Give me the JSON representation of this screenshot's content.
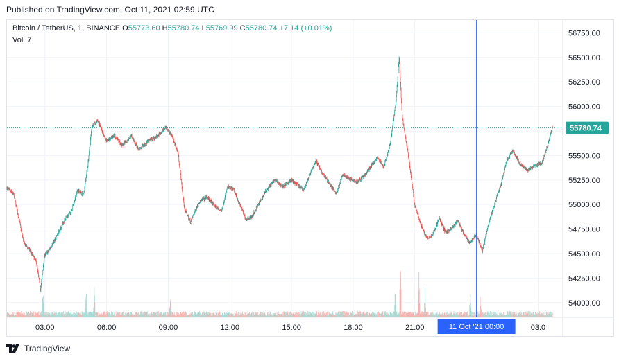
{
  "published": "Published on TradingView.com, Oct 11, 2021 02:59 UTC",
  "legend": {
    "symbol": "Bitcoin / TetherUS, 1, BINANCE",
    "o_label": "O",
    "o": "55773.60",
    "h_label": "H",
    "h": "55780.74",
    "l_label": "L",
    "l": "55769.99",
    "c_label": "C",
    "c": "55780.74",
    "change": "+7.14 (+0.01%)",
    "vol_label": "Vol",
    "vol": "7"
  },
  "brand": "TradingView",
  "colors": {
    "up": "#26a69a",
    "down": "#ef5350",
    "crosshair": "#2962ff",
    "last_price_bg": "#26a69a"
  },
  "chart_data": {
    "type": "candlestick",
    "y_ticks": [
      "56750.00",
      "56500.00",
      "56250.00",
      "56000.00",
      "55750.00",
      "55500.00",
      "55250.00",
      "55000.00",
      "54750.00",
      "54500.00",
      "54250.00",
      "54000.00"
    ],
    "ylim": [
      53850,
      56880
    ],
    "x_ticks": [
      "03:00",
      "06:00",
      "09:00",
      "12:00",
      "15:00",
      "18:00",
      "21:00",
      "03:0"
    ],
    "x_tick_hours": [
      3,
      6,
      9,
      12,
      15,
      18,
      21,
      27
    ],
    "xlim_hours": [
      1.15,
      28.2
    ],
    "crosshair_label": "11 Oct '21   00:00",
    "crosshair_hour": 24,
    "last_price": "55780.74",
    "last_price_value": 55780.74,
    "price_path": [
      [
        1.15,
        55170
      ],
      [
        1.5,
        55100
      ],
      [
        1.8,
        54800
      ],
      [
        2.0,
        54600
      ],
      [
        2.3,
        54530
      ],
      [
        2.6,
        54410
      ],
      [
        2.8,
        54130
      ],
      [
        3.0,
        54480
      ],
      [
        3.3,
        54560
      ],
      [
        3.6,
        54680
      ],
      [
        4.0,
        54850
      ],
      [
        4.3,
        54930
      ],
      [
        4.6,
        55150
      ],
      [
        4.9,
        55100
      ],
      [
        5.1,
        55400
      ],
      [
        5.3,
        55800
      ],
      [
        5.6,
        55850
      ],
      [
        6.0,
        55650
      ],
      [
        6.4,
        55700
      ],
      [
        6.8,
        55600
      ],
      [
        7.2,
        55700
      ],
      [
        7.6,
        55560
      ],
      [
        8.0,
        55640
      ],
      [
        8.5,
        55700
      ],
      [
        8.9,
        55780
      ],
      [
        9.2,
        55700
      ],
      [
        9.5,
        55520
      ],
      [
        9.8,
        54960
      ],
      [
        10.1,
        54820
      ],
      [
        10.5,
        55020
      ],
      [
        10.9,
        55080
      ],
      [
        11.3,
        54980
      ],
      [
        11.6,
        54930
      ],
      [
        11.9,
        55180
      ],
      [
        12.2,
        55150
      ],
      [
        12.5,
        55000
      ],
      [
        12.8,
        54850
      ],
      [
        13.1,
        54880
      ],
      [
        13.4,
        55000
      ],
      [
        13.8,
        55150
      ],
      [
        14.2,
        55250
      ],
      [
        14.6,
        55180
      ],
      [
        15.0,
        55250
      ],
      [
        15.3,
        55200
      ],
      [
        15.6,
        55150
      ],
      [
        15.9,
        55300
      ],
      [
        16.2,
        55450
      ],
      [
        16.5,
        55330
      ],
      [
        16.9,
        55200
      ],
      [
        17.2,
        55110
      ],
      [
        17.5,
        55300
      ],
      [
        17.9,
        55260
      ],
      [
        18.2,
        55230
      ],
      [
        18.6,
        55300
      ],
      [
        18.9,
        55400
      ],
      [
        19.2,
        55480
      ],
      [
        19.5,
        55380
      ],
      [
        19.8,
        55600
      ],
      [
        20.1,
        56050
      ],
      [
        20.25,
        56500
      ],
      [
        20.4,
        55900
      ],
      [
        20.7,
        55500
      ],
      [
        21.0,
        55000
      ],
      [
        21.3,
        54800
      ],
      [
        21.6,
        54650
      ],
      [
        21.9,
        54700
      ],
      [
        22.2,
        54860
      ],
      [
        22.5,
        54720
      ],
      [
        22.8,
        54750
      ],
      [
        23.1,
        54830
      ],
      [
        23.4,
        54700
      ],
      [
        23.7,
        54600
      ],
      [
        24.0,
        54700
      ],
      [
        24.3,
        54530
      ],
      [
        24.6,
        54800
      ],
      [
        24.9,
        55000
      ],
      [
        25.2,
        55200
      ],
      [
        25.5,
        55450
      ],
      [
        25.8,
        55550
      ],
      [
        26.1,
        55420
      ],
      [
        26.5,
        55350
      ],
      [
        26.9,
        55400
      ],
      [
        27.2,
        55420
      ],
      [
        27.5,
        55620
      ],
      [
        27.7,
        55780.74
      ]
    ],
    "volume_spikes": [
      [
        2.9,
        60
      ],
      [
        5.0,
        45
      ],
      [
        5.4,
        55
      ],
      [
        9.1,
        40
      ],
      [
        20.05,
        50
      ],
      [
        20.3,
        110
      ],
      [
        21.2,
        70
      ],
      [
        21.5,
        40
      ],
      [
        23.7,
        45
      ],
      [
        24.2,
        35
      ]
    ]
  }
}
